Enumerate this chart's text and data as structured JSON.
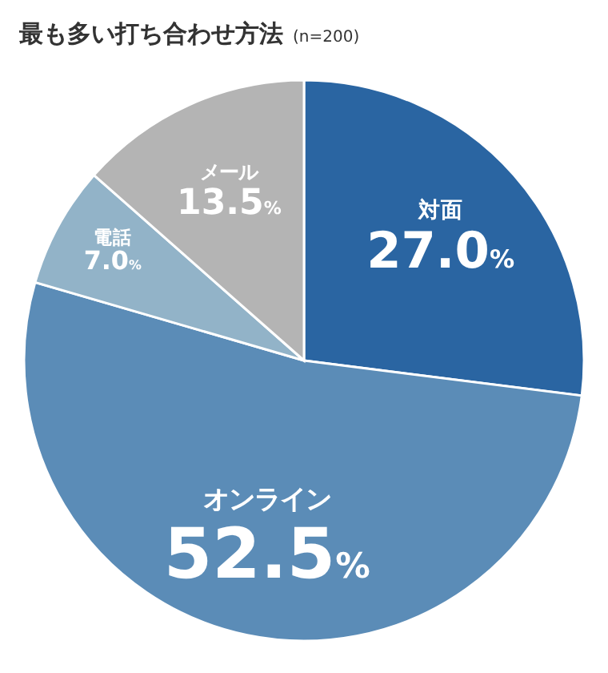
{
  "chart_data": {
    "type": "pie",
    "title": "最も多い打ち合わせ方法",
    "subtitle": "(n=200)",
    "categories": [
      "対面",
      "オンライン",
      "電話",
      "メール"
    ],
    "values": [
      27.0,
      52.5,
      7.0,
      13.5
    ],
    "value_labels": [
      "27.0%",
      "52.5%",
      "7.0%",
      "13.5%"
    ],
    "colors": [
      "#2a65a2",
      "#5b8cb7",
      "#92b3c8",
      "#b4b4b4"
    ]
  }
}
